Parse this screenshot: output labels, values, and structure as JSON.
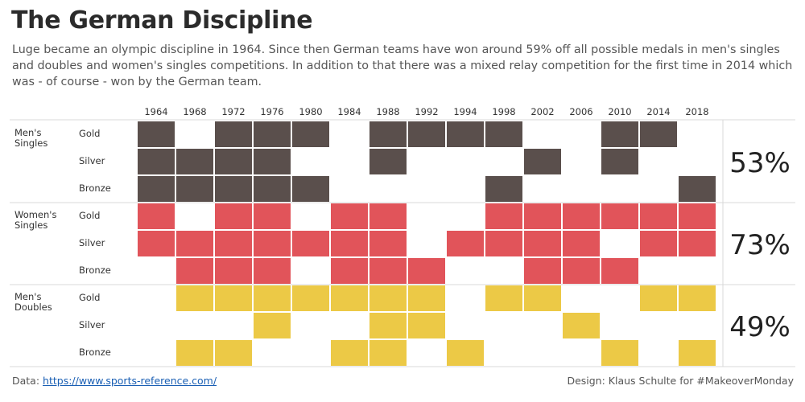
{
  "title": "The German Discipline",
  "subtitle": "Luge became an olympic discipline in 1964. Since then German teams have won around 59% off all possible medals in men's singles and doubles and women's singles competitions. In addition to that there was a mixed relay competition for the first time in 2014 which was - of course - won by the German team.",
  "footer": {
    "data_prefix": "Data: ",
    "data_link": "https://www.sports-reference.com/",
    "design": "Design: Klaus Schulte for #MakeoverMonday"
  },
  "chart_data": {
    "type": "heatmap",
    "years": [
      "1964",
      "1968",
      "1972",
      "1976",
      "1980",
      "1984",
      "1988",
      "1992",
      "1994",
      "1998",
      "2002",
      "2006",
      "2010",
      "2014",
      "2018"
    ],
    "medals": [
      "Gold",
      "Silver",
      "Bronze"
    ],
    "groups": [
      {
        "label": [
          "Men's",
          "Singles"
        ],
        "color": "#5a4f4c",
        "percent": "53%",
        "rows": {
          "Gold": [
            1,
            0,
            1,
            1,
            1,
            0,
            1,
            1,
            1,
            1,
            0,
            0,
            1,
            1,
            0
          ],
          "Silver": [
            1,
            1,
            1,
            1,
            0,
            0,
            1,
            0,
            0,
            0,
            1,
            0,
            1,
            0,
            0
          ],
          "Bronze": [
            1,
            1,
            1,
            1,
            1,
            0,
            0,
            0,
            0,
            1,
            0,
            0,
            0,
            0,
            1
          ]
        }
      },
      {
        "label": [
          "Women's",
          "Singles"
        ],
        "color": "#e1545a",
        "percent": "73%",
        "rows": {
          "Gold": [
            1,
            0,
            1,
            1,
            0,
            1,
            1,
            0,
            0,
            1,
            1,
            1,
            1,
            1,
            1
          ],
          "Silver": [
            1,
            1,
            1,
            1,
            1,
            1,
            1,
            0,
            1,
            1,
            1,
            1,
            0,
            1,
            1
          ],
          "Bronze": [
            0,
            1,
            1,
            1,
            0,
            1,
            1,
            1,
            0,
            0,
            1,
            1,
            1,
            0,
            0
          ]
        }
      },
      {
        "label": [
          "Men's",
          "Doubles"
        ],
        "color": "#ecc946",
        "percent": "49%",
        "rows": {
          "Gold": [
            0,
            1,
            1,
            1,
            1,
            1,
            1,
            1,
            0,
            1,
            1,
            0,
            0,
            1,
            1
          ],
          "Silver": [
            0,
            0,
            0,
            1,
            0,
            0,
            1,
            1,
            0,
            0,
            0,
            1,
            0,
            0,
            0
          ],
          "Bronze": [
            0,
            1,
            1,
            0,
            0,
            1,
            1,
            0,
            1,
            0,
            0,
            0,
            1,
            0,
            1
          ]
        }
      }
    ]
  }
}
